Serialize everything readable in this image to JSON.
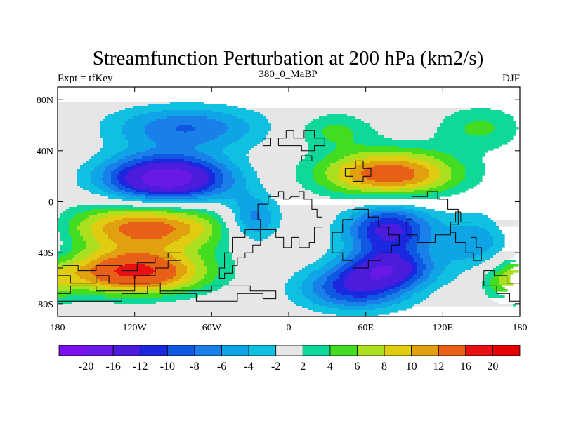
{
  "chart_data": {
    "type": "heatmap",
    "title": "Streamfunction Perturbation at 200 hPa (km2/s)",
    "subtitle_left": "Expt = tfKey",
    "subtitle_center": "380_0_MaBP",
    "subtitle_right": "DJF",
    "xlabel": "",
    "ylabel": "",
    "xlim": [
      -180,
      180
    ],
    "ylim": [
      -90,
      90
    ],
    "x_ticks": [
      {
        "value": -180,
        "label": "180"
      },
      {
        "value": -120,
        "label": "120W"
      },
      {
        "value": -60,
        "label": "60W"
      },
      {
        "value": 0,
        "label": "0"
      },
      {
        "value": 60,
        "label": "60E"
      },
      {
        "value": 120,
        "label": "120E"
      },
      {
        "value": 180,
        "label": "180"
      }
    ],
    "y_ticks": [
      {
        "value": 80,
        "label": "80N"
      },
      {
        "value": 40,
        "label": "40N"
      },
      {
        "value": 0,
        "label": "0"
      },
      {
        "value": -40,
        "label": "40S"
      },
      {
        "value": -80,
        "label": "80S"
      }
    ],
    "levels": [
      -20,
      -16,
      -12,
      -10,
      -8,
      -6,
      -4,
      -2,
      2,
      4,
      6,
      8,
      10,
      12,
      16,
      20
    ],
    "level_labels": [
      "-20",
      "-16",
      "-12",
      "-10",
      "-8",
      "-6",
      "-4",
      "-2",
      "2",
      "4",
      "6",
      "8",
      "10",
      "12",
      "16",
      "20"
    ],
    "colors": [
      "#7a10ee",
      "#6a18e6",
      "#4c1cdc",
      "#1c28e0",
      "#0f58e2",
      "#1880e8",
      "#0fa4e6",
      "#10c0e0",
      "#e6e6e6",
      "#10d89a",
      "#44dc20",
      "#aae020",
      "#e0cc10",
      "#e0a010",
      "#e86018",
      "#e81010",
      "#e40000"
    ],
    "anomalies": [
      {
        "lon": -95,
        "lat": 18,
        "slon": 34,
        "slat": 13,
        "amp": -19
      },
      {
        "lon": -80,
        "lat": 58,
        "slon": 42,
        "slat": 12,
        "amp": -8
      },
      {
        "lon": -28,
        "lat": -14,
        "slon": 15,
        "slat": 13,
        "amp": -8
      },
      {
        "lon": 78,
        "lat": -22,
        "slon": 24,
        "slat": 14,
        "amp": -13
      },
      {
        "lon": 78,
        "lat": -52,
        "slon": 24,
        "slat": 10,
        "amp": -12
      },
      {
        "lon": 52,
        "lat": -68,
        "slon": 30,
        "slat": 12,
        "amp": -11
      },
      {
        "lon": 150,
        "lat": -32,
        "slon": 22,
        "slat": 18,
        "amp": -6
      },
      {
        "lon": 78,
        "lat": 22,
        "slon": 38,
        "slat": 13,
        "amp": 14
      },
      {
        "lon": 35,
        "lat": 56,
        "slon": 22,
        "slat": 10,
        "amp": 4.5
      },
      {
        "lon": 150,
        "lat": 58,
        "slon": 25,
        "slat": 12,
        "amp": 4.5
      },
      {
        "lon": -110,
        "lat": -20,
        "slon": 44,
        "slat": 13,
        "amp": 13.5
      },
      {
        "lon": -120,
        "lat": -55,
        "slon": 38,
        "slat": 12,
        "amp": 17
      },
      {
        "lon": 172,
        "lat": -62,
        "slon": 16,
        "slat": 12,
        "amp": 6
      }
    ]
  }
}
